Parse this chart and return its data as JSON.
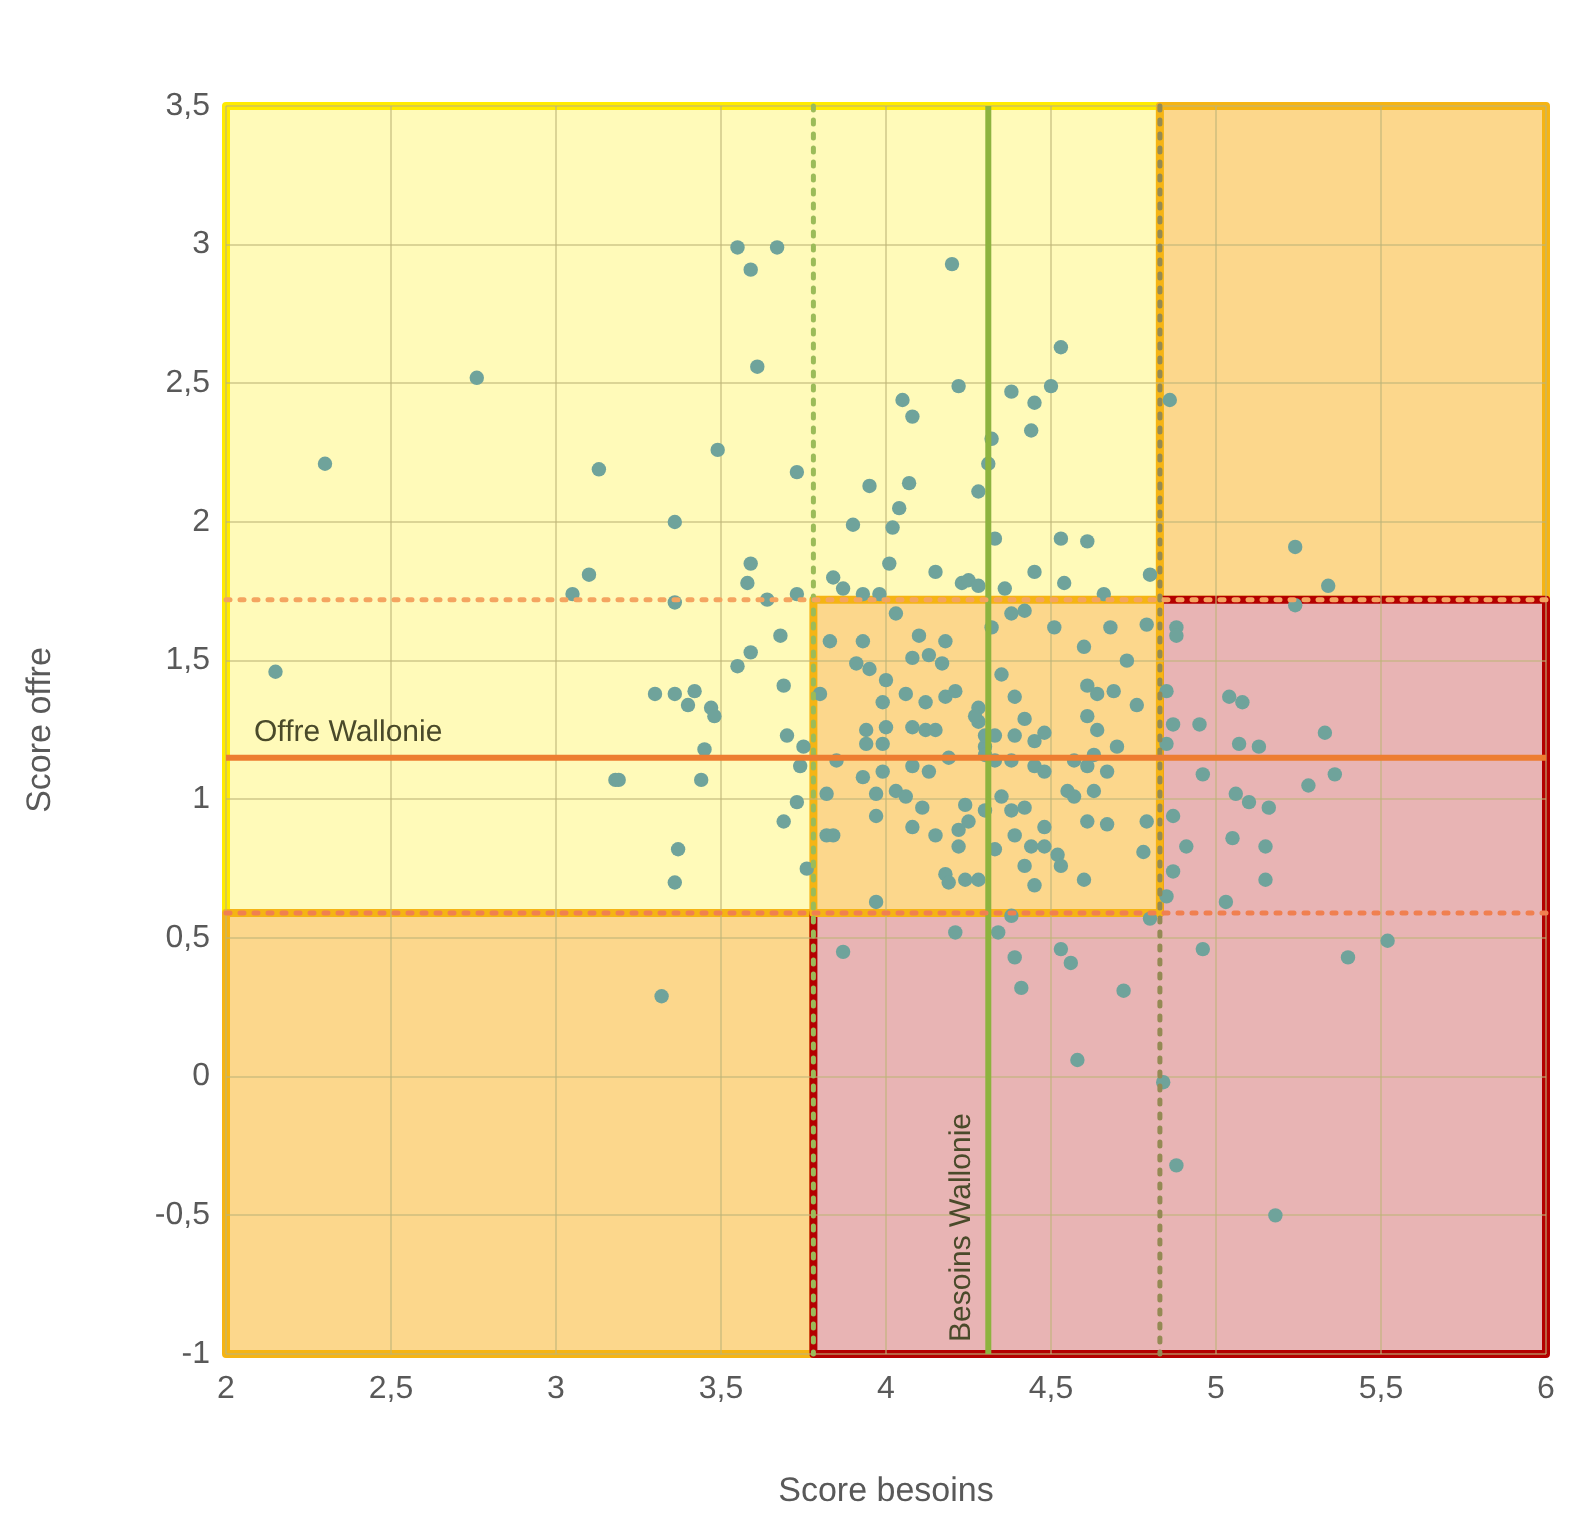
{
  "chart_data": {
    "type": "scatter",
    "xlabel": "Score besoins",
    "ylabel": "Score offre",
    "xlim": [
      2,
      6
    ],
    "ylim": [
      -1,
      3.5
    ],
    "xticks": [
      2,
      {
        "value": 2.5,
        "label": "2,5"
      },
      3,
      {
        "value": 3.5,
        "label": "3,5"
      },
      4,
      {
        "value": 4.5,
        "label": "4,5"
      },
      5,
      {
        "value": 5.5,
        "label": "5,5"
      },
      6
    ],
    "yticks": [
      -1,
      {
        "value": -0.5,
        "label": "-0,5"
      },
      0,
      {
        "value": 0.5,
        "label": "0,5"
      },
      1,
      {
        "value": 1.5,
        "label": "1,5"
      },
      2,
      {
        "value": 2.5,
        "label": "2,5"
      },
      3,
      {
        "value": 3.5,
        "label": "3,5"
      }
    ],
    "grid": true,
    "legend": false,
    "marker": "circle",
    "ref_lines": [
      {
        "axis": "x",
        "value": 3.78,
        "label": null,
        "color": "#9bbb59",
        "line_style": "dotted"
      },
      {
        "axis": "x",
        "value": 4.31,
        "label": "Besoins Wallonie",
        "color": "#8db33f",
        "line_style": "solid"
      },
      {
        "axis": "x",
        "value": 4.83,
        "label": null,
        "color": "#948a54",
        "line_style": "dotted"
      },
      {
        "axis": "y",
        "value": 1.72,
        "label": null,
        "color": "#f4a460",
        "line_style": "dotted"
      },
      {
        "axis": "y",
        "value": 1.15,
        "label": "Offre Wallonie",
        "color": "#ed7d31",
        "line_style": "solid"
      },
      {
        "axis": "y",
        "value": 0.59,
        "label": null,
        "color": "#f08050",
        "line_style": "dotted"
      }
    ],
    "x": [
      3.55,
      3.67,
      3.59,
      3.61,
      2.76,
      2.3,
      3.13,
      3.49,
      3.73,
      3.36,
      3.59,
      3.58,
      3.1,
      3.05,
      3.36,
      3.64,
      3.73,
      3.68,
      3.59,
      3.55,
      3.69,
      2.15,
      3.3,
      3.36,
      3.42,
      3.4,
      3.47,
      3.48,
      3.7,
      3.45,
      3.75,
      3.18,
      3.19,
      3.44,
      3.74,
      3.73,
      3.82,
      3.69,
      3.37,
      3.36,
      3.82,
      3.84,
      3.76,
      3.32,
      3.83,
      3.8,
      4.2,
      4.53,
      4.22,
      4.38,
      4.45,
      4.5,
      4.44,
      4.05,
      4.08,
      4.32,
      4.31,
      4.28,
      3.95,
      4.07,
      4.04,
      3.9,
      4.02,
      4.33,
      4.53,
      4.61,
      4.01,
      4.15,
      4.45,
      4.54,
      3.84,
      3.87,
      4.23,
      4.25,
      4.28,
      4.36,
      3.98,
      3.93,
      4.66,
      4.8,
      4.86,
      3.93,
      4.03,
      4.1,
      4.18,
      4.08,
      4.13,
      4.17,
      3.91,
      3.95,
      4.0,
      4.06,
      4.12,
      3.99,
      4.18,
      4.21,
      4.28,
      4.28,
      4.35,
      4.39,
      4.42,
      4.39,
      4.38,
      4.42,
      4.32,
      4.51,
      4.6,
      4.68,
      4.79,
      4.73,
      4.61,
      4.64,
      4.69,
      4.76,
      4.61,
      4.64,
      4.48,
      4.45,
      4.7,
      3.94,
      4.0,
      4.08,
      4.12,
      4.15,
      3.94,
      3.99,
      3.85,
      4.19,
      4.08,
      4.13,
      3.93,
      3.99,
      3.97,
      4.03,
      4.06,
      4.11,
      4.3,
      4.33,
      4.38,
      4.45,
      4.48,
      4.57,
      4.61,
      4.63,
      4.67,
      4.55,
      4.57,
      4.63,
      4.24,
      4.3,
      4.35,
      4.38,
      4.42,
      3.97,
      4.08,
      4.15,
      4.22,
      4.25,
      4.22,
      4.33,
      4.39,
      4.44,
      4.48,
      4.48,
      4.52,
      4.61,
      4.67,
      4.79,
      4.78,
      4.42,
      4.53,
      4.28,
      4.18,
      4.19,
      4.24,
      4.45,
      4.6,
      3.97,
      4.27,
      4.3,
      4.33,
      4.3,
      4.88,
      4.88,
      4.87,
      4.95,
      4.96,
      4.87,
      4.91,
      4.87,
      4.85,
      3.87,
      4.21,
      4.34,
      4.39,
      4.41,
      4.53,
      4.56,
      4.72,
      4.58,
      4.84,
      4.88,
      4.96,
      4.8,
      4.38,
      5.24,
      5.34,
      5.24,
      4.85,
      5.04,
      5.08,
      5.33,
      4.85,
      5.07,
      5.13,
      5.36,
      5.28,
      5.06,
      5.1,
      5.16,
      5.05,
      5.15,
      5.15,
      5.03,
      5.4,
      5.52,
      5.18
    ],
    "series": [
      {
        "color": "#6fa39b",
        "values": [
          2.99,
          2.99,
          2.91,
          2.56,
          2.52,
          2.21,
          2.19,
          2.26,
          2.18,
          2.0,
          1.85,
          1.78,
          1.81,
          1.74,
          1.71,
          1.72,
          1.74,
          1.59,
          1.53,
          1.48,
          1.41,
          1.46,
          1.38,
          1.38,
          1.39,
          1.34,
          1.33,
          1.3,
          1.23,
          1.18,
          1.19,
          1.07,
          1.07,
          1.07,
          1.12,
          0.99,
          1.02,
          0.92,
          0.82,
          0.7,
          0.87,
          0.87,
          0.75,
          0.29,
          1.57,
          1.38,
          2.93,
          2.63,
          2.49,
          2.47,
          2.43,
          2.49,
          2.33,
          2.44,
          2.38,
          2.3,
          2.21,
          2.11,
          2.13,
          2.14,
          2.05,
          1.99,
          1.98,
          1.94,
          1.94,
          1.93,
          1.85,
          1.82,
          1.82,
          1.78,
          1.8,
          1.76,
          1.78,
          1.79,
          1.77,
          1.76,
          1.74,
          1.74,
          1.74,
          1.81,
          2.44,
          1.57,
          1.67,
          1.59,
          1.57,
          1.51,
          1.52,
          1.49,
          1.49,
          1.47,
          1.43,
          1.38,
          1.35,
          1.35,
          1.37,
          1.39,
          1.33,
          1.28,
          1.45,
          1.37,
          1.29,
          1.23,
          1.67,
          1.68,
          1.62,
          1.62,
          1.55,
          1.62,
          1.63,
          1.5,
          1.41,
          1.38,
          1.39,
          1.34,
          1.3,
          1.25,
          1.24,
          1.21,
          1.19,
          1.25,
          1.26,
          1.26,
          1.25,
          1.25,
          1.2,
          1.2,
          1.14,
          1.15,
          1.12,
          1.1,
          1.08,
          1.1,
          1.02,
          1.03,
          1.01,
          0.97,
          1.19,
          1.14,
          1.14,
          1.12,
          1.1,
          1.14,
          1.12,
          1.16,
          1.1,
          1.03,
          1.01,
          1.03,
          0.98,
          0.96,
          1.01,
          0.96,
          0.97,
          0.94,
          0.9,
          0.87,
          0.89,
          0.92,
          0.83,
          0.82,
          0.87,
          0.83,
          0.83,
          0.9,
          0.8,
          0.92,
          0.91,
          0.92,
          0.81,
          0.76,
          0.76,
          0.71,
          0.73,
          0.7,
          0.71,
          0.69,
          0.71,
          0.63,
          1.3,
          1.23,
          1.23,
          1.16,
          1.62,
          1.59,
          1.27,
          1.27,
          1.09,
          0.94,
          0.83,
          0.74,
          0.65,
          0.45,
          0.52,
          0.52,
          0.43,
          0.32,
          0.46,
          0.41,
          0.31,
          0.06,
          -0.02,
          -0.32,
          0.46,
          0.57,
          0.58,
          1.91,
          1.77,
          1.7,
          1.39,
          1.37,
          1.35,
          1.24,
          1.2,
          1.2,
          1.19,
          1.09,
          1.05,
          1.02,
          0.99,
          0.97,
          0.86,
          0.83,
          0.71,
          0.63,
          0.43,
          0.49,
          -0.5
        ]
      }
    ]
  }
}
